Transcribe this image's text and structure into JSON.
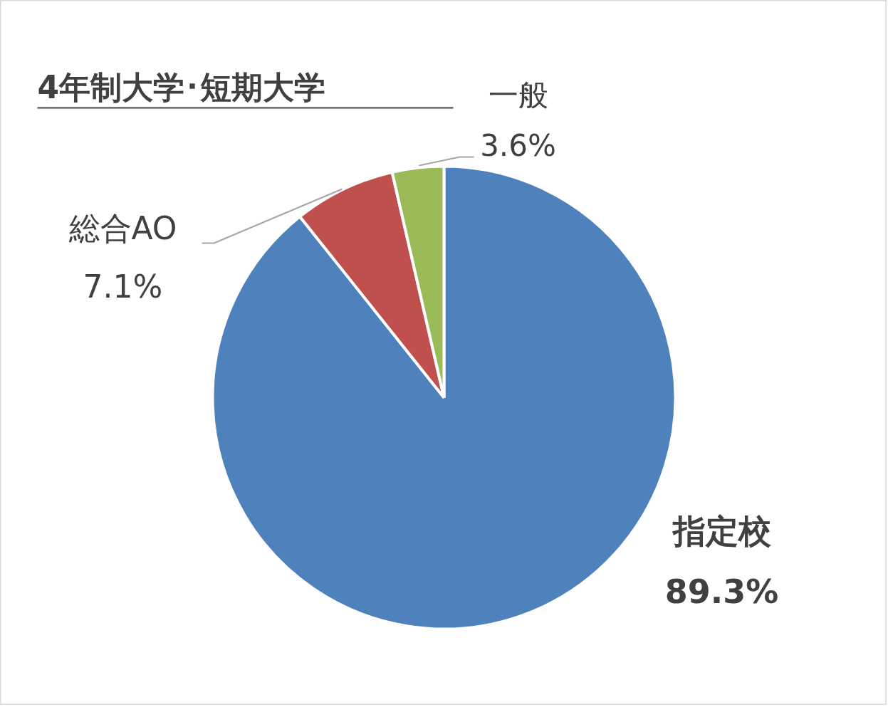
{
  "chart_data": {
    "type": "pie",
    "title": "4年制大学･短期大学",
    "categories": [
      "指定校",
      "総合AO",
      "一般"
    ],
    "values": [
      89.3,
      7.1,
      3.6
    ],
    "colors": [
      "#4f81bd",
      "#c0504d",
      "#9bbb59"
    ],
    "value_labels": [
      "89.3%",
      "7.1%",
      "3.6%"
    ]
  }
}
